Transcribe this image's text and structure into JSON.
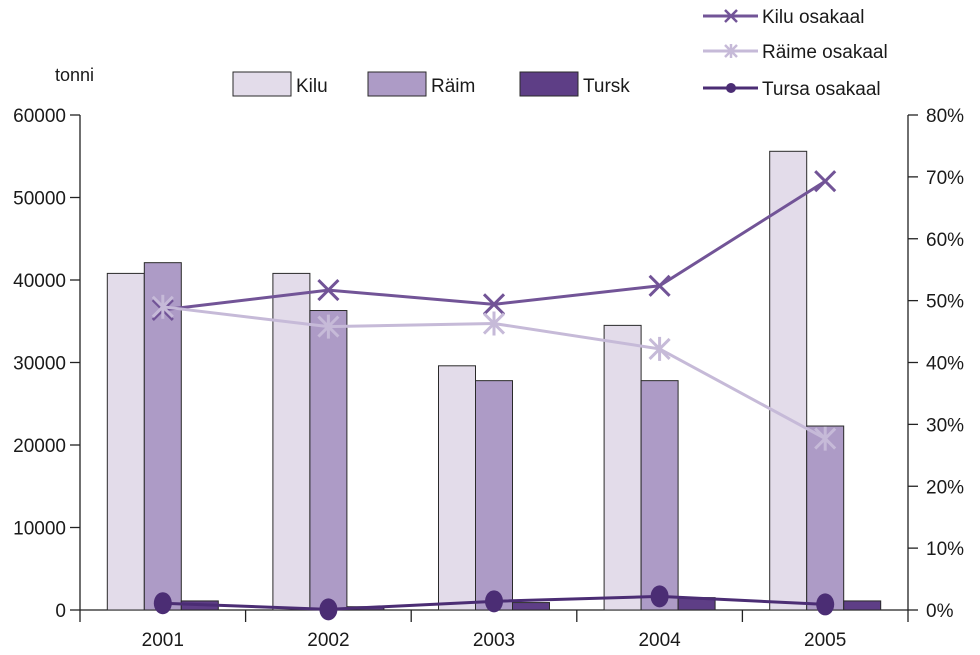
{
  "chart_data": {
    "type": "bar",
    "categories": [
      "2001",
      "2002",
      "2003",
      "2004",
      "2005"
    ],
    "ylabel": "tonni",
    "ylim": [
      0,
      60000
    ],
    "y2lim": [
      0,
      80
    ],
    "yticks": [
      "0",
      "10000",
      "20000",
      "30000",
      "40000",
      "50000",
      "60000"
    ],
    "y2ticks": [
      "0%",
      "10%",
      "20%",
      "30%",
      "40%",
      "50%",
      "60%",
      "70%",
      "80%"
    ],
    "grid": false,
    "bar_series": [
      {
        "name": "Kilu",
        "color": "#e3dcea",
        "values": [
          40800,
          40800,
          29600,
          34500,
          55600
        ]
      },
      {
        "name": "Räim",
        "color": "#ad9bc6",
        "values": [
          42100,
          36300,
          27800,
          27800,
          22300
        ]
      },
      {
        "name": "Tursk",
        "color": "#5e3e86",
        "values": [
          1100,
          400,
          900,
          1500,
          1100
        ]
      }
    ],
    "line_series": [
      {
        "name": "Kilu osakaal",
        "axis": "right",
        "marker": "x",
        "color": "#725497",
        "values": [
          48.5,
          51.7,
          49.4,
          52.4,
          69.3
        ]
      },
      {
        "name": "Räime osakaal",
        "axis": "right",
        "marker": "asterisk",
        "color": "#c6bad8",
        "values": [
          49.0,
          45.8,
          46.3,
          42.2,
          27.7
        ]
      },
      {
        "name": "Tursa osakaal",
        "axis": "right",
        "marker": "circle",
        "color": "#4b2d74",
        "values": [
          1.1,
          0.1,
          1.4,
          2.2,
          0.9
        ]
      }
    ]
  }
}
